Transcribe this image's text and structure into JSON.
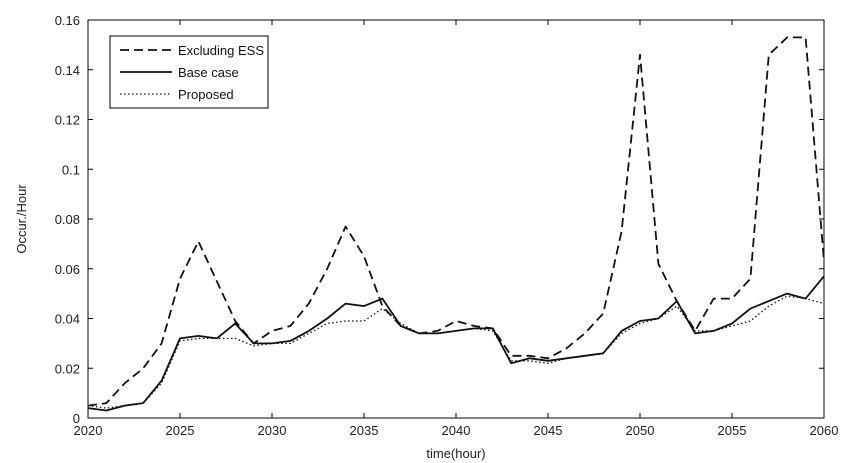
{
  "chart_data": {
    "type": "line",
    "xlabel": "time(hour)",
    "ylabel": "Occur./Hour",
    "xlim": [
      2020,
      2060
    ],
    "ylim": [
      0,
      0.16
    ],
    "xticks": [
      "2020",
      "2025",
      "2030",
      "2035",
      "2040",
      "2045",
      "2050",
      "2055",
      "2060"
    ],
    "yticks": [
      "0",
      "0.02",
      "0.04",
      "0.06",
      "0.08",
      "0.1",
      "0.12",
      "0.14",
      "0.16"
    ],
    "grid": false,
    "legend_position": "top-left",
    "x": [
      2020,
      2021,
      2022,
      2023,
      2024,
      2025,
      2026,
      2027,
      2028,
      2029,
      2030,
      2031,
      2032,
      2033,
      2034,
      2035,
      2036,
      2037,
      2038,
      2039,
      2040,
      2041,
      2042,
      2043,
      2044,
      2045,
      2046,
      2047,
      2048,
      2049,
      2050,
      2051,
      2052,
      2053,
      2054,
      2055,
      2056,
      2057,
      2058,
      2059,
      2060
    ],
    "series": [
      {
        "name": "Excluding ESS",
        "style": "dashed",
        "color": "#111111",
        "values": [
          0.005,
          0.006,
          0.014,
          0.02,
          0.03,
          0.056,
          0.071,
          0.055,
          0.039,
          0.03,
          0.035,
          0.037,
          0.046,
          0.06,
          0.077,
          0.065,
          0.045,
          0.037,
          0.034,
          0.035,
          0.039,
          0.037,
          0.036,
          0.025,
          0.025,
          0.024,
          0.028,
          0.034,
          0.042,
          0.075,
          0.146,
          0.062,
          0.047,
          0.035,
          0.048,
          0.048,
          0.056,
          0.146,
          0.153,
          0.153,
          0.063
        ]
      },
      {
        "name": "Base case",
        "style": "solid",
        "color": "#111111",
        "values": [
          0.004,
          0.003,
          0.005,
          0.006,
          0.015,
          0.032,
          0.033,
          0.032,
          0.038,
          0.03,
          0.03,
          0.031,
          0.035,
          0.04,
          0.046,
          0.045,
          0.048,
          0.037,
          0.034,
          0.034,
          0.035,
          0.036,
          0.036,
          0.022,
          0.024,
          0.023,
          0.024,
          0.025,
          0.026,
          0.035,
          0.039,
          0.04,
          0.047,
          0.034,
          0.035,
          0.038,
          0.044,
          0.047,
          0.05,
          0.048,
          0.057
        ]
      },
      {
        "name": "Proposed",
        "style": "dotted",
        "color": "#111111",
        "values": [
          0.005,
          0.004,
          0.005,
          0.006,
          0.014,
          0.031,
          0.032,
          0.032,
          0.032,
          0.029,
          0.03,
          0.03,
          0.034,
          0.038,
          0.039,
          0.039,
          0.044,
          0.038,
          0.034,
          0.034,
          0.035,
          0.036,
          0.035,
          0.023,
          0.023,
          0.022,
          0.024,
          0.025,
          0.026,
          0.034,
          0.038,
          0.04,
          0.045,
          0.035,
          0.035,
          0.037,
          0.039,
          0.045,
          0.049,
          0.048,
          0.046
        ]
      }
    ]
  }
}
